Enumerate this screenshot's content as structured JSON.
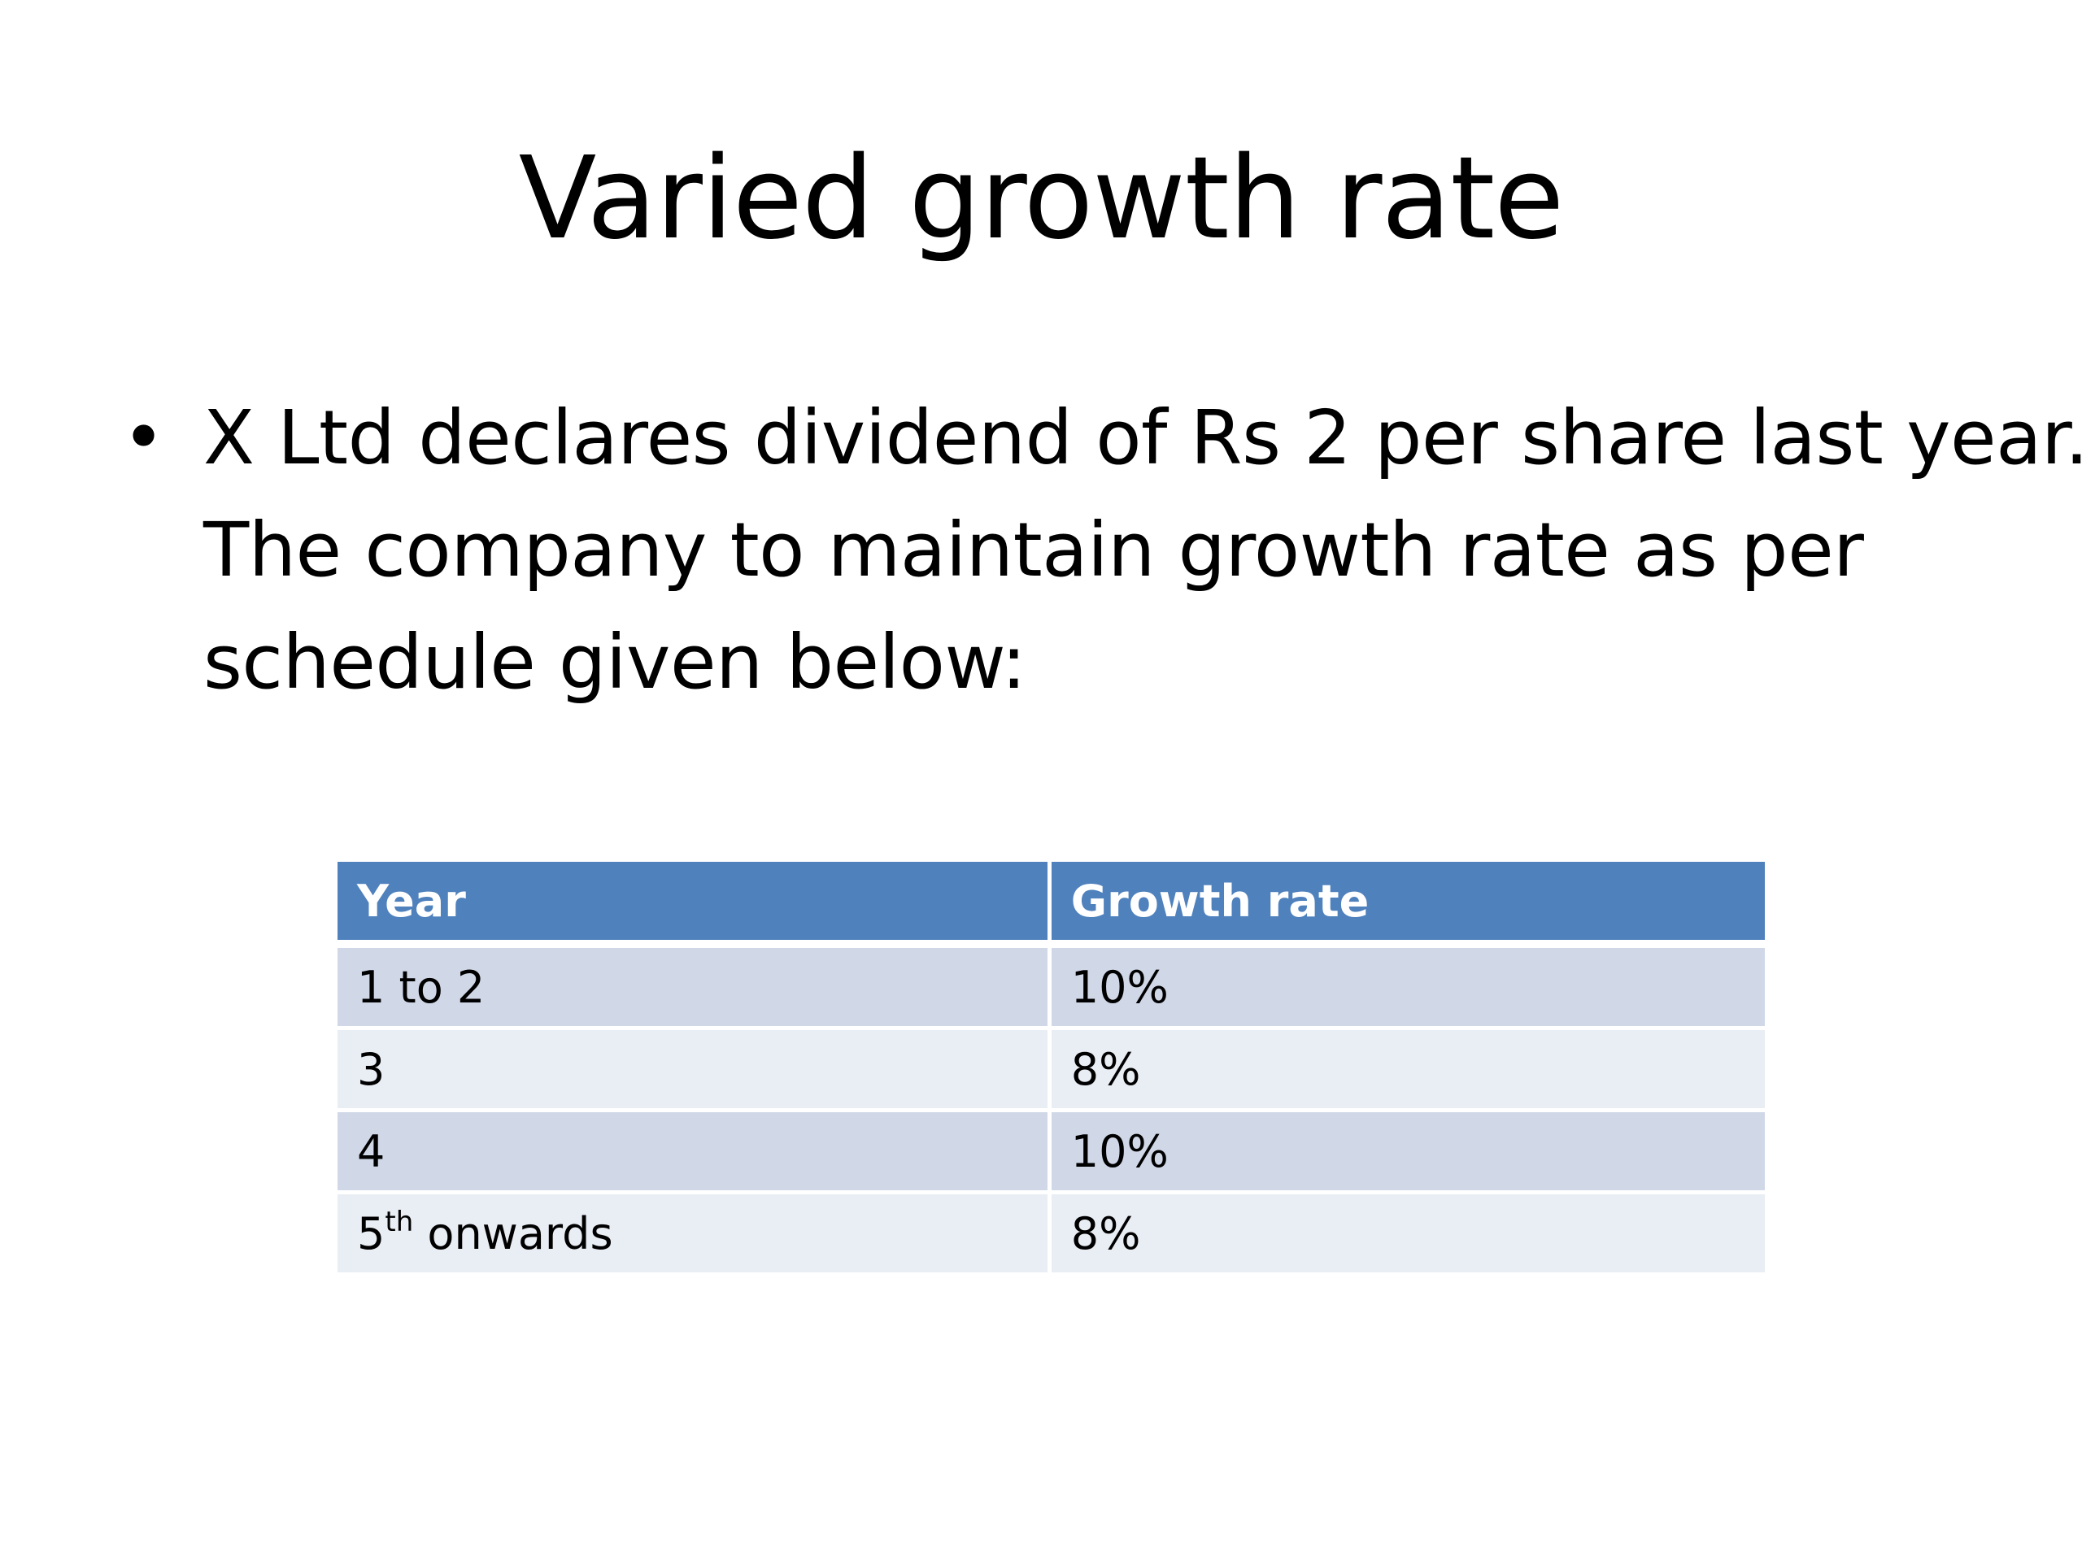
{
  "slide": {
    "title": "Varied growth rate",
    "bullet": "X Ltd declares dividend of Rs 2 per share last year. The company to maintain growth rate as per schedule given below:"
  },
  "table": {
    "headers": [
      "Year",
      "Growth rate"
    ],
    "rows": [
      {
        "year": "1 to 2",
        "rate": "10%"
      },
      {
        "year": "3",
        "rate": "8%"
      },
      {
        "year": "4",
        "rate": "10%"
      },
      {
        "year_base": "5",
        "year_sup": "th",
        "year_rest": " onwards",
        "rate": "8%"
      }
    ]
  },
  "colors": {
    "header_bg": "#4f81bd",
    "row_odd_bg": "#d0d8e8",
    "row_even_bg": "#e9edf4"
  }
}
